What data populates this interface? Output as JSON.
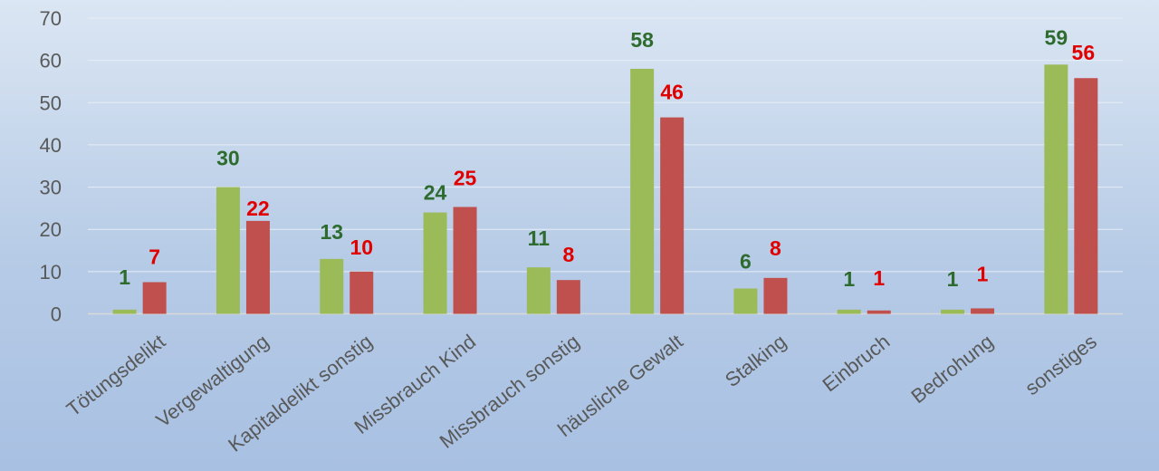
{
  "chart_data": {
    "type": "bar",
    "categories": [
      "Tötungsdelikt",
      "Vergewaltigung",
      "Kapitaldelikt sonstig",
      "Missbrauch Kind",
      "Missbrauch sonstig",
      "häusliche Gewalt",
      "Stalking",
      "Einbruch",
      "Bedrohung",
      "sonstiges"
    ],
    "series": [
      {
        "values": [
          1,
          30,
          13,
          24,
          11,
          58,
          6,
          1,
          1,
          59
        ],
        "color": "#9bbb59",
        "label_color": "#2e6b2e"
      },
      {
        "values": [
          7,
          22,
          10,
          25,
          8,
          46,
          8,
          1,
          1,
          56
        ],
        "color": "#c0504d",
        "label_color": "#e00000"
      }
    ],
    "bar_heights": [
      [
        1,
        30,
        13,
        24,
        11,
        58,
        6,
        1,
        1,
        59
      ],
      [
        7.5,
        22,
        10,
        25.3,
        8,
        46.5,
        8.5,
        0.8,
        1.3,
        55.8
      ]
    ],
    "ylim": [
      0,
      70
    ],
    "yticks": [
      0,
      10,
      20,
      30,
      40,
      50,
      60,
      70
    ],
    "grid": true,
    "legend": false,
    "title": "",
    "xlabel": "",
    "ylabel": ""
  }
}
